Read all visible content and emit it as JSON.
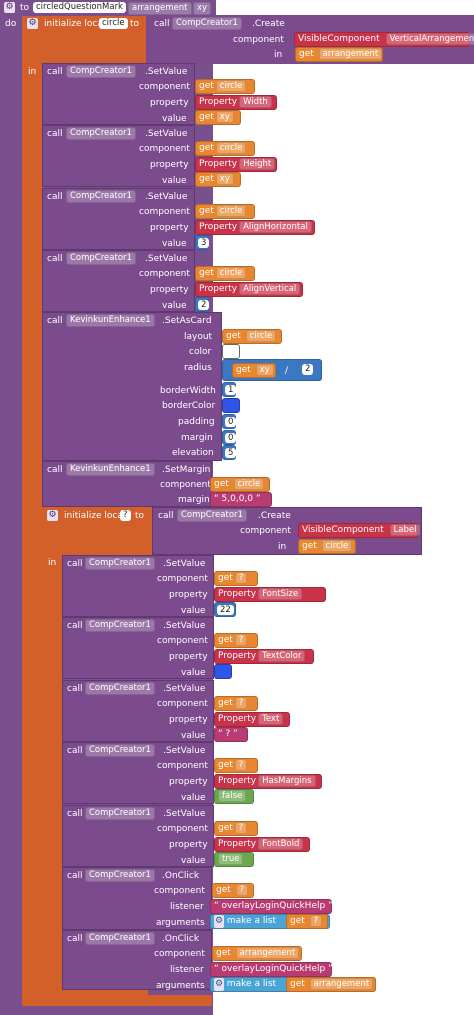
{
  "proc": {
    "to": "to",
    "name": "circledQuestionMark",
    "param1": "arrangement",
    "param2": "xy",
    "do": "do"
  },
  "init1": {
    "label": "initialize local",
    "var": "circle",
    "to": "to",
    "call": "call",
    "creator": "CompCreator1",
    "method": ".Create",
    "component_label": "component",
    "vc_label": "VisibleComponent",
    "vc_value": "VerticalArrangement",
    "in_label": "in",
    "get": "get",
    "get_var": "arrangement"
  },
  "in_label": "in",
  "common": {
    "call": "call",
    "creator": "CompCreator1",
    "setvalue": ".SetValue",
    "component": "component",
    "property": "property",
    "value": "value",
    "get": "get",
    "circle": "circle",
    "xy": "xy",
    "property_word": "Property"
  },
  "set1": {
    "property": "Width"
  },
  "set2": {
    "property": "Height"
  },
  "set3": {
    "property": "AlignHorizontal",
    "value": "3"
  },
  "set4": {
    "property": "AlignVertical",
    "value": "2"
  },
  "card": {
    "enhance": "KevinkunEnhance1",
    "method": ".SetAsCard",
    "layout": "layout",
    "color": "color",
    "radius": "radius",
    "divide": "/",
    "divisor": "2",
    "borderWidth": "borderWidth",
    "borderWidth_val": "1",
    "borderColor": "borderColor",
    "padding": "padding",
    "padding_val": "0",
    "margin": "margin",
    "margin_val": "0",
    "elevation": "elevation",
    "elevation_val": "5",
    "colors": {
      "color": "#ffffff",
      "borderColor": "#2f54e8"
    }
  },
  "margin": {
    "enhance": "KevinkunEnhance1",
    "method": ".SetMargin",
    "component": "component",
    "margin": "margin",
    "value": "5,0,0,0"
  },
  "init2": {
    "label": "initialize local",
    "var": "?",
    "to": "to",
    "call": "call",
    "creator": "CompCreator1",
    "method": ".Create",
    "component_label": "component",
    "vc_label": "VisibleComponent",
    "vc_value": "Label",
    "in_label": "in",
    "get": "get",
    "get_var": "circle"
  },
  "in2_label": "in",
  "lset1": {
    "q": "?",
    "property": "FontSize",
    "value": "22"
  },
  "lset2": {
    "q": "?",
    "property": "TextColor",
    "color": "#2f54e8"
  },
  "lset3": {
    "q": "?",
    "property": "Text",
    "value": "?"
  },
  "lset4": {
    "q": "?",
    "property": "HasMargins",
    "value": "false"
  },
  "lset5": {
    "q": "?",
    "property": "FontBold",
    "value": "true"
  },
  "onclick1": {
    "method": ".OnClick",
    "component": "component",
    "listener": "listener",
    "arguments": "arguments",
    "q": "?",
    "listener_val": "overlayLoginQuickHelp",
    "makelist": "make a list",
    "get_var": "?"
  },
  "onclick2": {
    "method": ".OnClick",
    "component": "component",
    "listener": "listener",
    "arguments": "arguments",
    "comp_var": "arrangement",
    "listener_val": "overlayLoginQuickHelp",
    "makelist": "make a list",
    "get_var": "arrangement"
  }
}
